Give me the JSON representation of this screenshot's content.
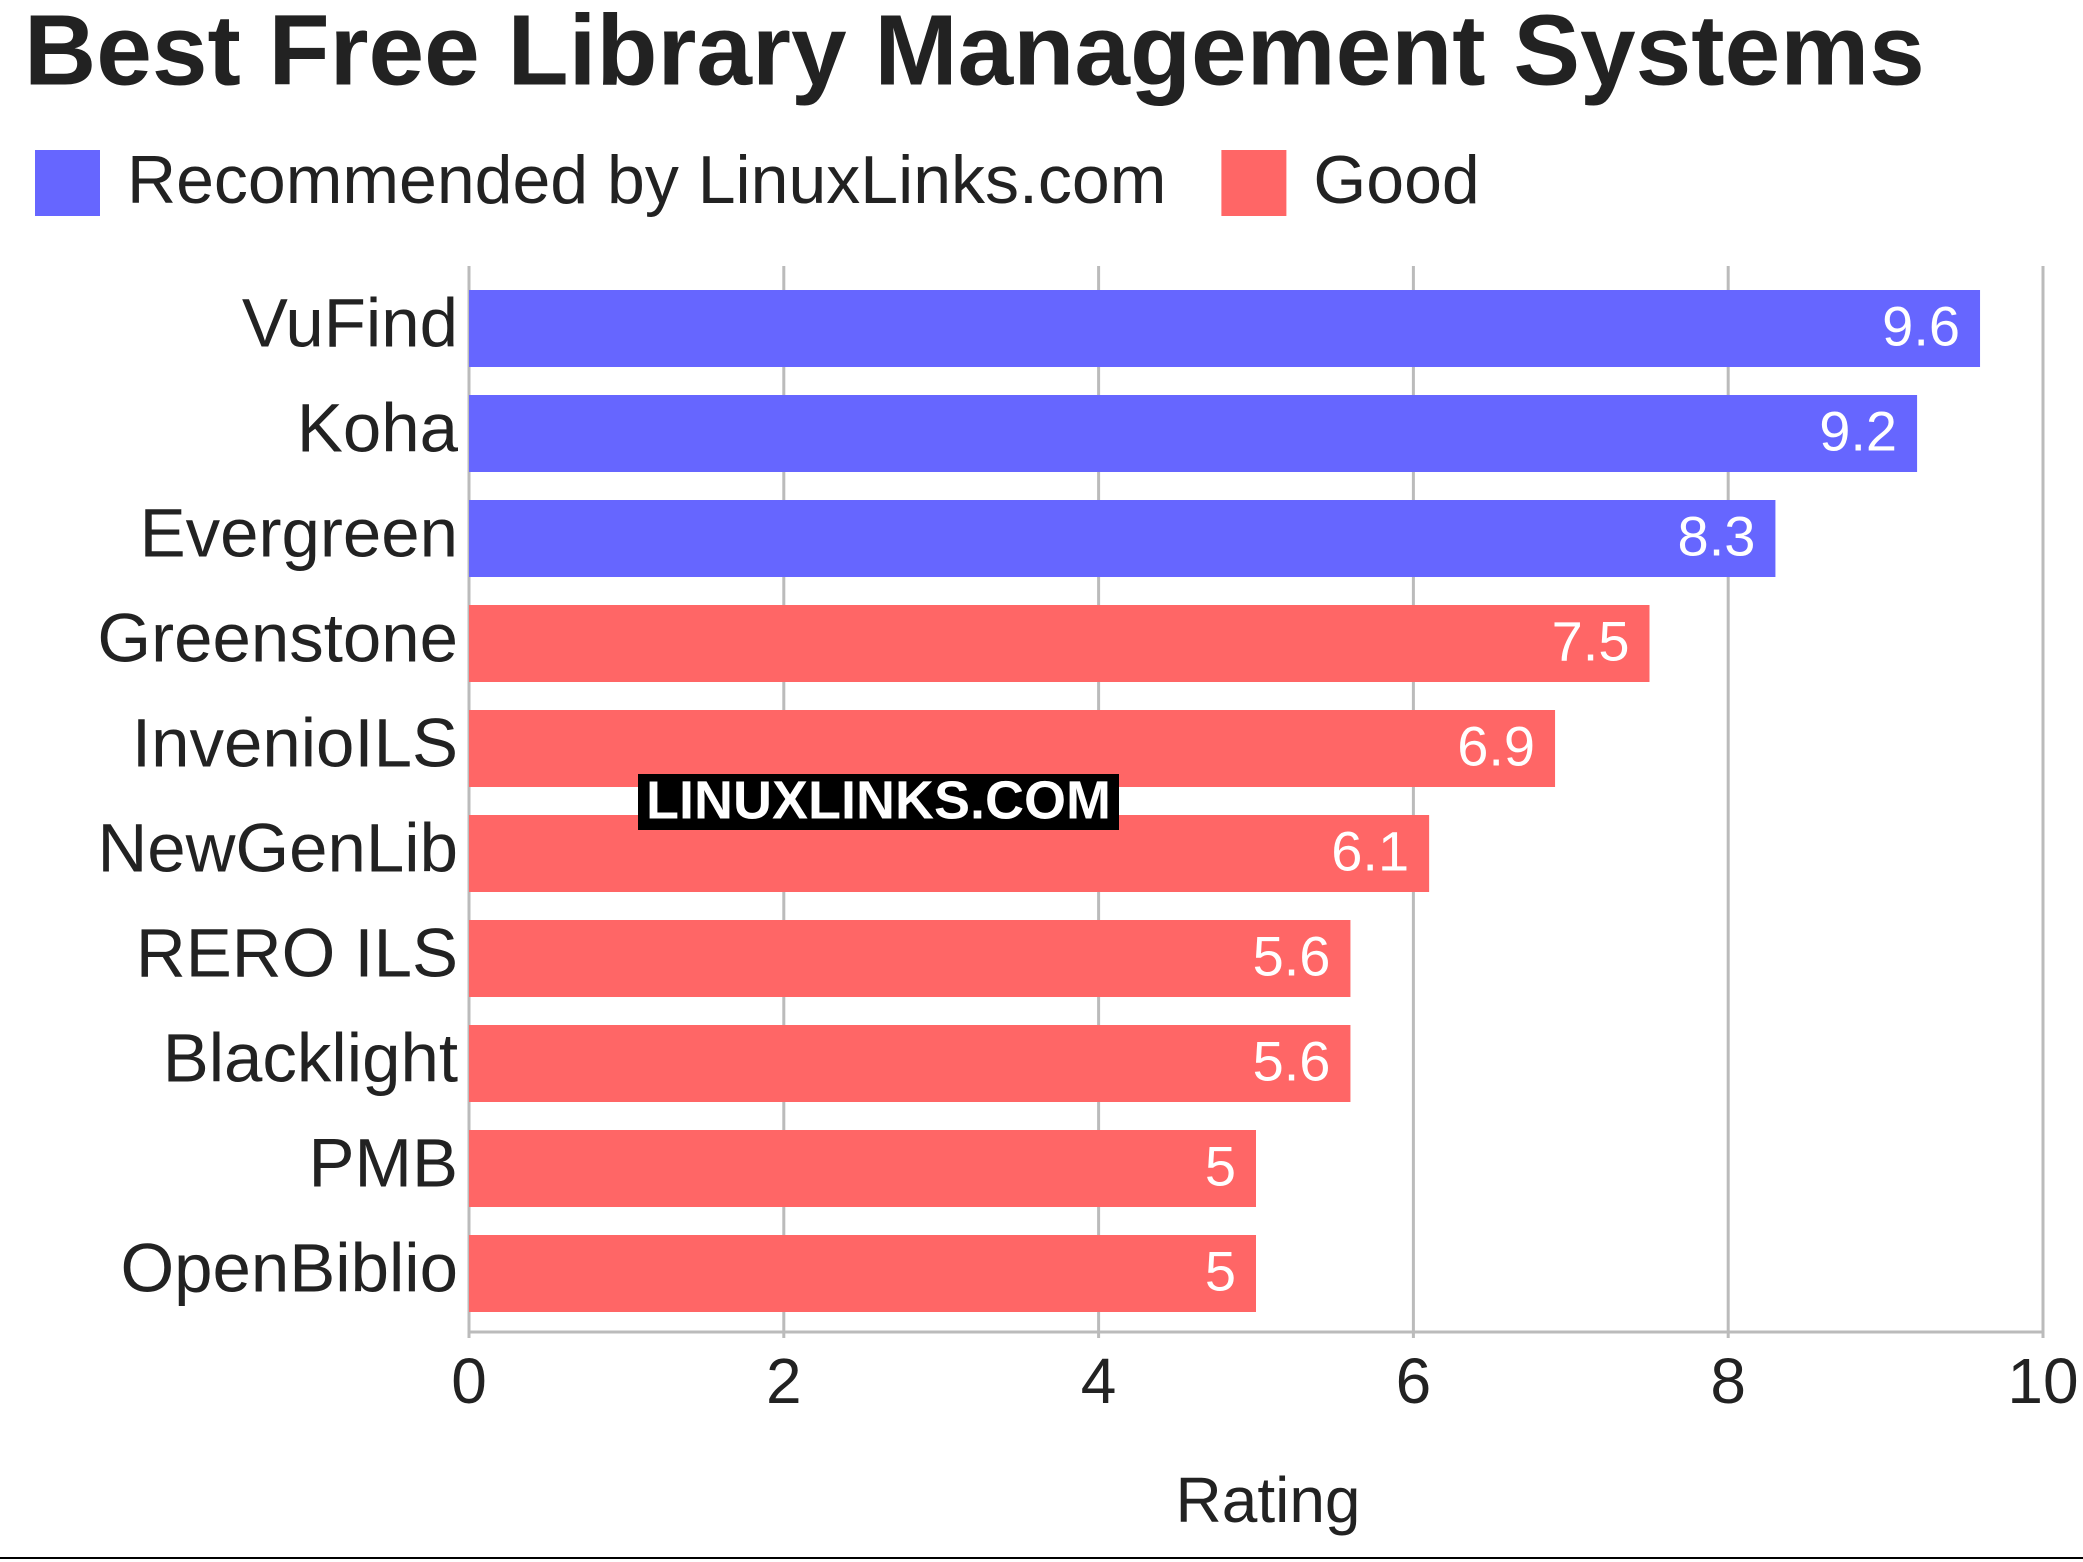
{
  "chart_data": {
    "type": "hbar",
    "title": "Best Free Library Management Systems",
    "categories": [
      "VuFind",
      "Koha",
      "Evergreen",
      "Greenstone",
      "InvenioILS",
      "NewGenLib",
      "RERO ILS",
      "Blacklight",
      "PMB",
      "OpenBiblio"
    ],
    "series": [
      {
        "name": "Recommended by LinuxLinks.com",
        "color": "#6666ff",
        "values": [
          9.6,
          9.2,
          8.3,
          null,
          null,
          null,
          null,
          null,
          null,
          null
        ]
      },
      {
        "name": "Good",
        "color": "#ff6666",
        "values": [
          null,
          null,
          null,
          7.5,
          6.9,
          6.1,
          5.6,
          5.6,
          5,
          5
        ]
      }
    ],
    "xlabel": "Rating",
    "xlim": [
      0,
      10
    ],
    "xticks": [
      0,
      2,
      4,
      6,
      8,
      10
    ],
    "grid": true,
    "watermark": "LINUXLINKS.COM"
  }
}
